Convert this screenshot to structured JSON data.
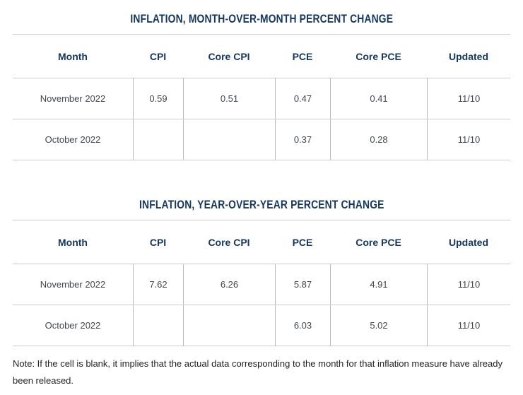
{
  "colors": {
    "accent_navy": "#14365f",
    "data_text": "#42474d",
    "note_text": "#1e2023",
    "rule_horizontal": "#c9cccd",
    "rule_vertical": "#b9bcbe",
    "background": "#ffffff"
  },
  "tables": [
    {
      "title": "INFLATION, MONTH-OVER-MONTH PERCENT CHANGE",
      "headers": [
        "Month",
        "CPI",
        "Core CPI",
        "PCE",
        "Core PCE",
        "Updated"
      ],
      "rows": [
        {
          "cells": [
            "November 2022",
            "0.59",
            "0.51",
            "0.47",
            "0.41",
            "11/10"
          ]
        },
        {
          "cells": [
            "October 2022",
            "",
            "",
            "0.37",
            "0.28",
            "11/10"
          ]
        }
      ]
    },
    {
      "title": "INFLATION, YEAR-OVER-YEAR PERCENT CHANGE",
      "headers": [
        "Month",
        "CPI",
        "Core CPI",
        "PCE",
        "Core PCE",
        "Updated"
      ],
      "rows": [
        {
          "cells": [
            "November 2022",
            "7.62",
            "6.26",
            "5.87",
            "4.91",
            "11/10"
          ]
        },
        {
          "cells": [
            "October 2022",
            "",
            "",
            "6.03",
            "5.02",
            "11/10"
          ]
        }
      ]
    }
  ],
  "note": "Note: If the cell is blank, it implies that the actual data corresponding to the month for that inflation measure have already been released.",
  "chart_data": [
    {
      "type": "table",
      "title": "INFLATION, MONTH-OVER-MONTH PERCENT CHANGE",
      "columns": [
        "Month",
        "CPI",
        "Core CPI",
        "PCE",
        "Core PCE",
        "Updated"
      ],
      "rows": [
        [
          "November 2022",
          0.59,
          0.51,
          0.47,
          0.41,
          "11/10"
        ],
        [
          "October 2022",
          null,
          null,
          0.37,
          0.28,
          "11/10"
        ]
      ]
    },
    {
      "type": "table",
      "title": "INFLATION, YEAR-OVER-YEAR PERCENT CHANGE",
      "columns": [
        "Month",
        "CPI",
        "Core CPI",
        "PCE",
        "Core PCE",
        "Updated"
      ],
      "rows": [
        [
          "November 2022",
          7.62,
          6.26,
          5.87,
          4.91,
          "11/10"
        ],
        [
          "October 2022",
          null,
          null,
          6.03,
          5.02,
          "11/10"
        ]
      ]
    }
  ]
}
